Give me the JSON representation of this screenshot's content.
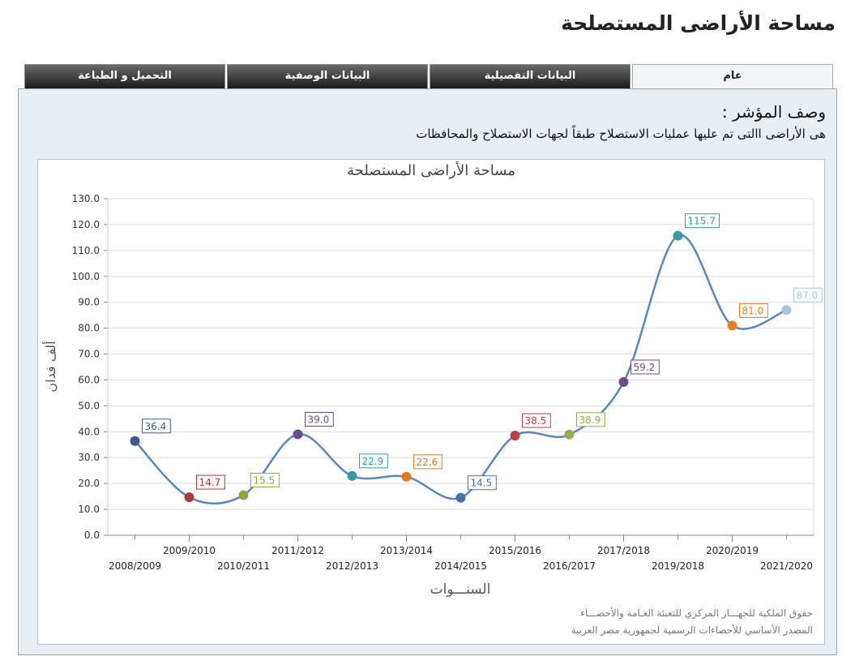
{
  "header": {
    "title": "مساحة الأراضى المستصلحة"
  },
  "tabs": [
    "عام",
    "البيانات التفصيلية",
    "البيانات الوصفية",
    "التحميل و الطباعة"
  ],
  "description": {
    "label": "وصف المؤشر :",
    "text": "هى الأراضى االتى تم عليها عمليات الاستصلاح طبقاً لجهات الاستصلاح والمحافظات"
  },
  "chart_data": {
    "type": "line",
    "title": "مساحة الأراضى المستصلحة",
    "y_label": "ألف فدان",
    "x_label": "السنـــوات",
    "categories": [
      "2008/2009",
      "2009/2010",
      "2010/2011",
      "2011/2012",
      "2012/2013",
      "2013/2014",
      "2014/2015",
      "2015/2016",
      "2016/2017",
      "2017/2018",
      "2019/2018",
      "2020/2019",
      "2021/2020"
    ],
    "values": [
      36.4,
      14.7,
      15.5,
      39.0,
      22.9,
      22.6,
      14.5,
      38.5,
      38.9,
      59.2,
      115.7,
      81.0,
      87.0
    ],
    "value_labels": [
      "36.4",
      "14.7",
      "15.5",
      "39.0",
      "22.9",
      "22.6",
      "14.5",
      "38.5",
      "38.9",
      "59.2",
      "115.7",
      "81.0",
      "87.0"
    ],
    "line_color": "#5b86bd",
    "point_colors": [
      "#3d5a8a",
      "#a83a3a",
      "#8aab3c",
      "#6a4c8c",
      "#3a97a8",
      "#e07b20",
      "#4a72a8",
      "#b84040",
      "#8fb04a",
      "#6b4c8c",
      "#3a98a8",
      "#e8801f",
      "#a9c4e0"
    ],
    "ylim": [
      0,
      130
    ],
    "yticks": [
      {
        "value": 0,
        "label": "0.0"
      },
      {
        "value": 10,
        "label": "10.0"
      },
      {
        "value": 20,
        "label": "20.0"
      },
      {
        "value": 30,
        "label": "30.0"
      },
      {
        "value": 40,
        "label": "40.0"
      },
      {
        "value": 50,
        "label": "50.0"
      },
      {
        "value": 60,
        "label": "60.0"
      },
      {
        "value": 70,
        "label": "70.0"
      },
      {
        "value": 80,
        "label": "80.0"
      },
      {
        "value": 90,
        "label": "90.0"
      },
      {
        "value": 100,
        "label": "100.0"
      },
      {
        "value": 110,
        "label": "110.0"
      },
      {
        "value": 120,
        "label": "120.0"
      },
      {
        "value": 130,
        "label": "130.0"
      }
    ],
    "grid": true
  },
  "footer": [
    "حقوق الملكية للجهـــاز المركزي للتعبئة العـامة والأحصـــاء",
    "المصدر الأساسي للأحصاءات الرسمية لجمهورية مصر العربية"
  ]
}
